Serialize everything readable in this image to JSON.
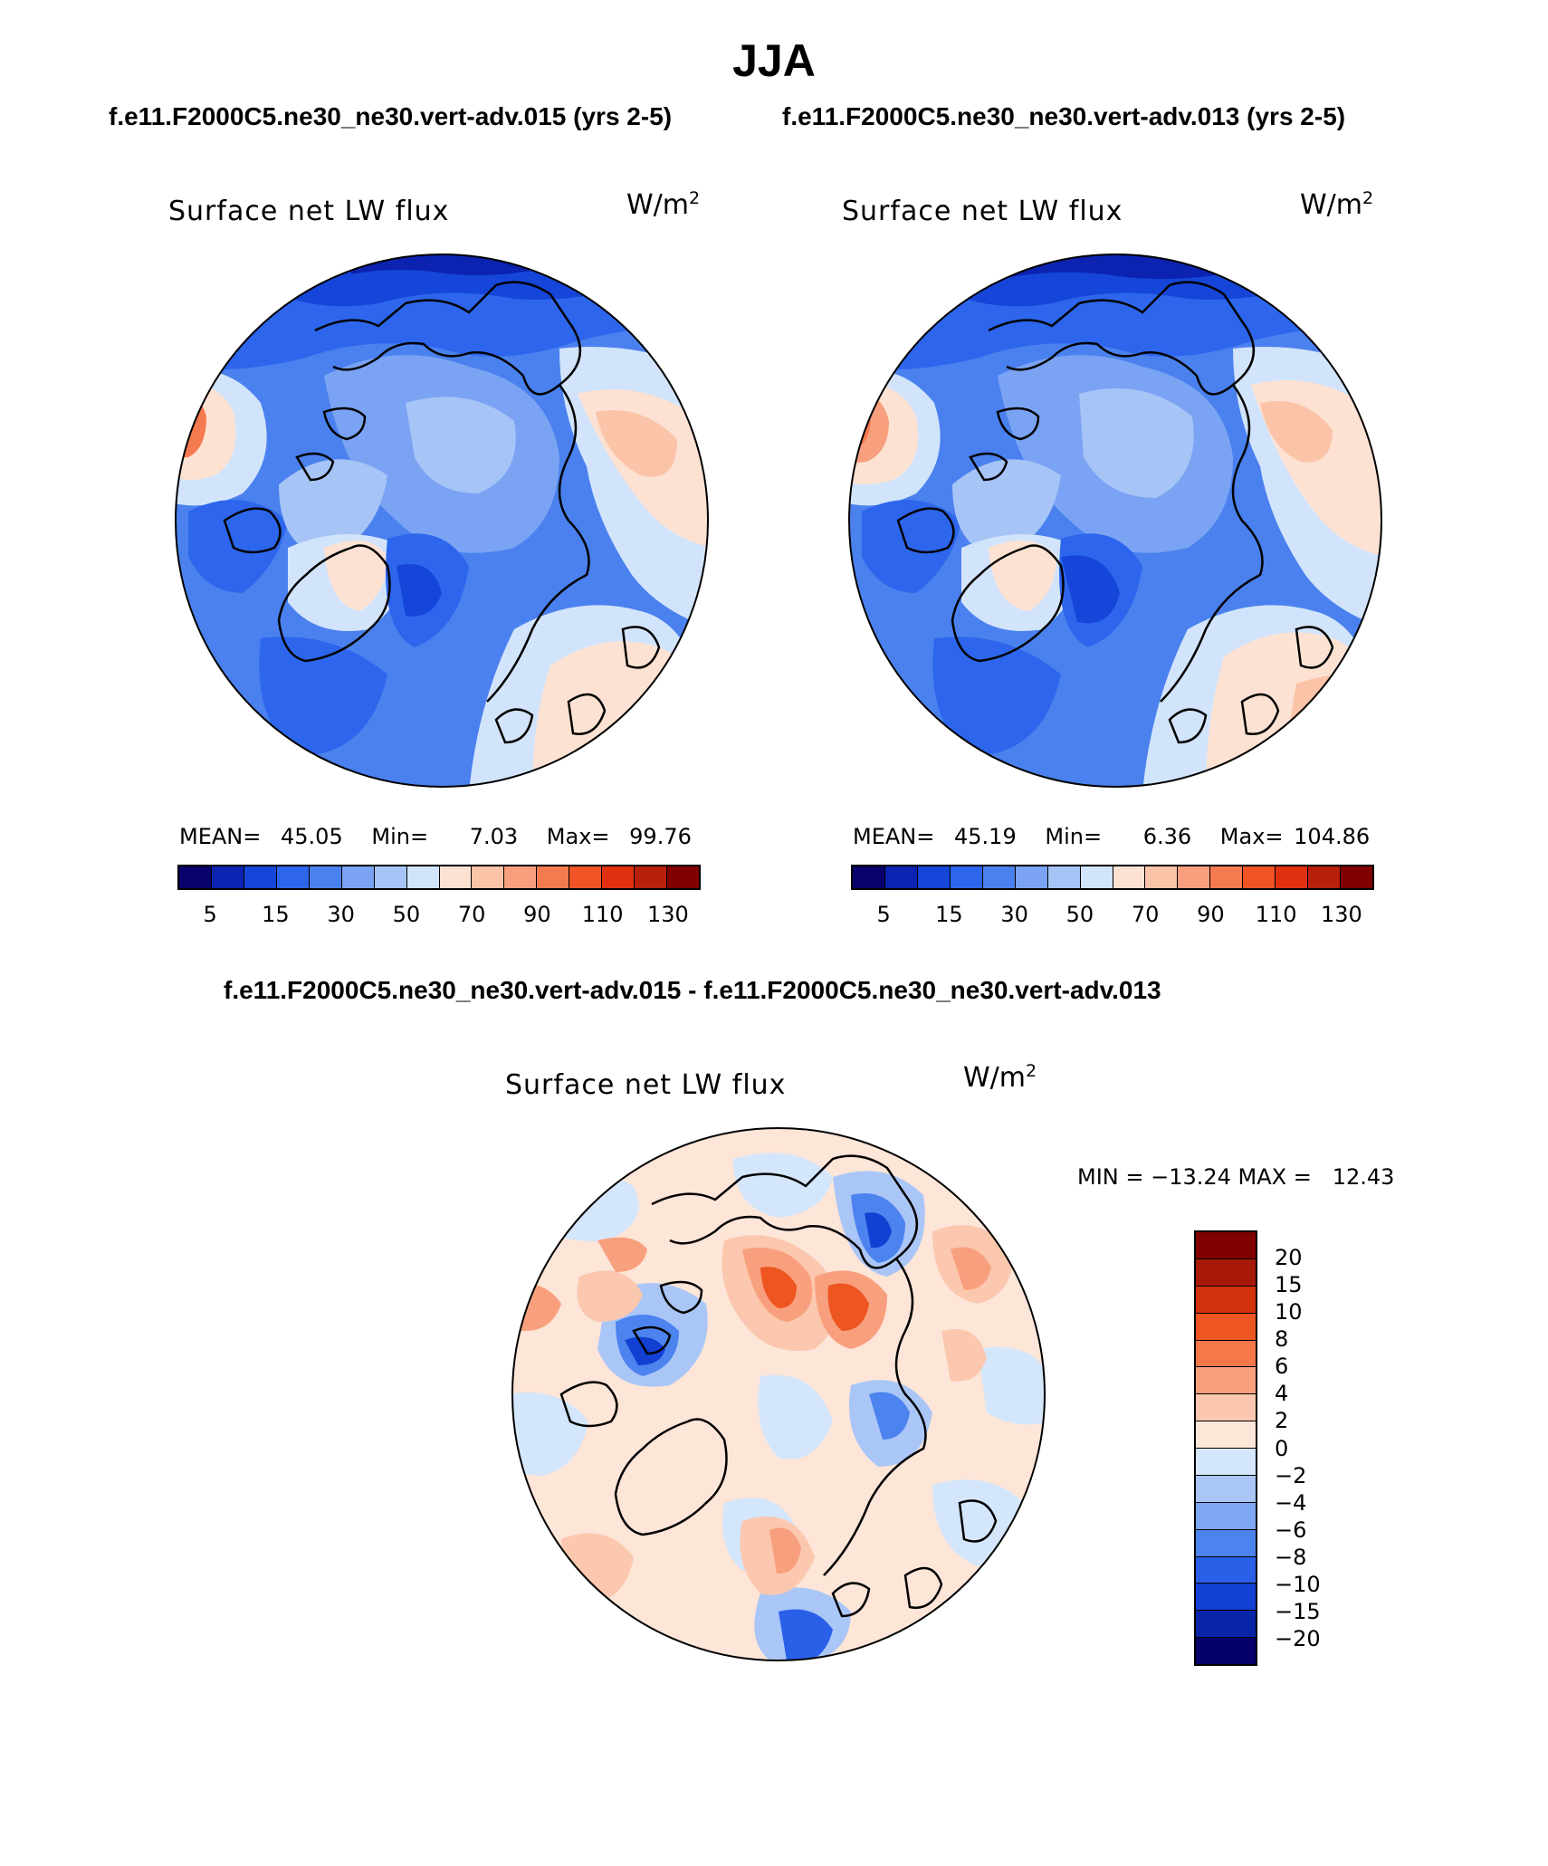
{
  "title": "JJA",
  "subtitle_left": "f.e11.F2000C5.ne30_ne30.vert-adv.015 (yrs 2-5)",
  "subtitle_right": "f.e11.F2000C5.ne30_ne30.vert-adv.013 (yrs 2-5)",
  "diff_title": "f.e11.F2000C5.ne30_ne30.vert-adv.015 - f.e11.F2000C5.ne30_ne30.vert-adv.013",
  "panels": {
    "left": {
      "variable": "Surface net LW flux",
      "units_base": "W/m",
      "units_exp": "2",
      "mean_label": "MEAN=",
      "mean": "45.05",
      "min_label": "Min=",
      "min": "7.03",
      "max_label": "Max=",
      "max": "99.76"
    },
    "right": {
      "variable": "Surface net LW flux",
      "units_base": "W/m",
      "units_exp": "2",
      "mean_label": "MEAN=",
      "mean": "45.19",
      "min_label": "Min=",
      "min": "6.36",
      "max_label": "Max=",
      "max": "104.86"
    },
    "diff": {
      "variable": "Surface net LW flux",
      "units_base": "W/m",
      "units_exp": "2",
      "minmax": "MIN = −13.24 MAX =   12.43"
    }
  },
  "colorbar_abs": {
    "colors": [
      "#08006b",
      "#0b23b0",
      "#1546d9",
      "#2d66ec",
      "#4a81ee",
      "#7aa3f3",
      "#a7c4f7",
      "#d2e4fb",
      "#fde2d3",
      "#fbc3a8",
      "#f8a07e",
      "#f47a4f",
      "#ef5326",
      "#e03010",
      "#b9200b",
      "#800000"
    ],
    "ticks": [
      "5",
      "15",
      "30",
      "50",
      "70",
      "90",
      "110",
      "130"
    ]
  },
  "colorbar_diff": {
    "colors": [
      "#800000",
      "#a8190a",
      "#d4330e",
      "#ed5521",
      "#f4784a",
      "#f8a07e",
      "#fbc7ae",
      "#fde5d8",
      "#d4e6fb",
      "#aac6f7",
      "#7ea6f3",
      "#4d83ee",
      "#2a60e8",
      "#1240d2",
      "#0a24a8",
      "#06006b"
    ],
    "ticks": [
      "20",
      "15",
      "10",
      "8",
      "6",
      "4",
      "2",
      "0",
      "−2",
      "−4",
      "−6",
      "−8",
      "−10",
      "−15",
      "−20"
    ]
  }
}
